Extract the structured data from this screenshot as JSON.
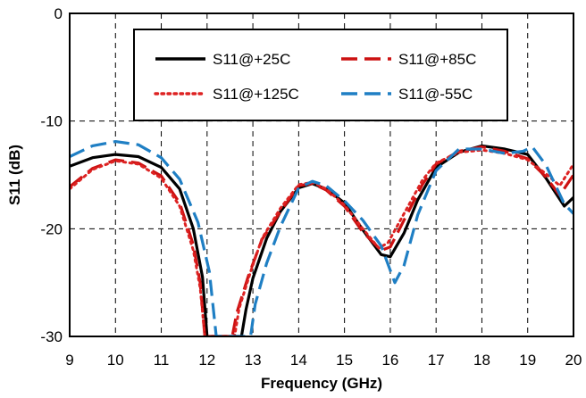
{
  "chart_data": {
    "type": "line",
    "xlabel": "Frequency (GHz)",
    "ylabel": "S11 (dB)",
    "xlim": [
      9,
      20
    ],
    "ylim": [
      -30,
      0
    ],
    "xticks": [
      9,
      10,
      11,
      12,
      13,
      14,
      15,
      16,
      17,
      18,
      19,
      20
    ],
    "yticks": [
      0,
      -10,
      -20,
      -30
    ],
    "grid": true,
    "legend": "top",
    "series": [
      {
        "name": "S11@+25C",
        "color": "#000000",
        "dash": "solid",
        "points": [
          [
            9,
            -14.2
          ],
          [
            9.5,
            -13.4
          ],
          [
            10,
            -13.1
          ],
          [
            10.5,
            -13.3
          ],
          [
            11,
            -14.3
          ],
          [
            11.4,
            -16.3
          ],
          [
            11.7,
            -20
          ],
          [
            11.9,
            -24.5
          ],
          [
            12.0,
            -30
          ],
          [
            12.75,
            -30
          ],
          [
            12.85,
            -27.5
          ],
          [
            13.0,
            -24.6
          ],
          [
            13.3,
            -20.9
          ],
          [
            13.6,
            -18.4
          ],
          [
            14.0,
            -16.2
          ],
          [
            14.3,
            -15.8
          ],
          [
            14.6,
            -16.3
          ],
          [
            15.0,
            -17.6
          ],
          [
            15.4,
            -20.1
          ],
          [
            15.8,
            -22.4
          ],
          [
            16.0,
            -22.6
          ],
          [
            16.3,
            -20.4
          ],
          [
            16.6,
            -17.3
          ],
          [
            17.0,
            -14.3
          ],
          [
            17.5,
            -12.9
          ],
          [
            18.0,
            -12.3
          ],
          [
            18.5,
            -12.6
          ],
          [
            19.0,
            -13.1
          ],
          [
            19.4,
            -15.3
          ],
          [
            19.8,
            -17.9
          ],
          [
            20,
            -17.1
          ]
        ]
      },
      {
        "name": "S11@+85C",
        "color": "#cc1111",
        "dash": "dashed",
        "points": [
          [
            9,
            -16.1
          ],
          [
            9.5,
            -14.4
          ],
          [
            10,
            -13.6
          ],
          [
            10.5,
            -13.9
          ],
          [
            11,
            -15.1
          ],
          [
            11.4,
            -17.6
          ],
          [
            11.7,
            -21.5
          ],
          [
            11.85,
            -25
          ],
          [
            11.95,
            -30
          ],
          [
            12.55,
            -30
          ],
          [
            12.65,
            -27.8
          ],
          [
            12.9,
            -24.4
          ],
          [
            13.2,
            -21.0
          ],
          [
            13.6,
            -18.4
          ],
          [
            14.0,
            -16.0
          ],
          [
            14.3,
            -15.8
          ],
          [
            14.6,
            -16.4
          ],
          [
            15.0,
            -17.9
          ],
          [
            15.4,
            -20.3
          ],
          [
            15.8,
            -22.0
          ],
          [
            16.0,
            -21.7
          ],
          [
            16.3,
            -19.2
          ],
          [
            16.7,
            -15.9
          ],
          [
            17.0,
            -14.0
          ],
          [
            17.5,
            -12.8
          ],
          [
            18.0,
            -12.4
          ],
          [
            18.5,
            -12.8
          ],
          [
            19.0,
            -13.5
          ],
          [
            19.4,
            -15.2
          ],
          [
            19.7,
            -16.9
          ],
          [
            20,
            -15.0
          ]
        ]
      },
      {
        "name": "S11@+125C",
        "color": "#dd2222",
        "dash": "dotted",
        "points": [
          [
            9,
            -16.3
          ],
          [
            9.5,
            -14.5
          ],
          [
            10,
            -13.7
          ],
          [
            10.5,
            -14.0
          ],
          [
            11,
            -15.3
          ],
          [
            11.4,
            -17.9
          ],
          [
            11.7,
            -22.0
          ],
          [
            11.85,
            -25.5
          ],
          [
            11.95,
            -30
          ],
          [
            12.6,
            -30
          ],
          [
            12.7,
            -27.4
          ],
          [
            12.95,
            -24.0
          ],
          [
            13.2,
            -20.9
          ],
          [
            13.6,
            -18.1
          ],
          [
            14.0,
            -15.9
          ],
          [
            14.3,
            -15.7
          ],
          [
            14.6,
            -16.3
          ],
          [
            15.0,
            -17.8
          ],
          [
            15.4,
            -20.0
          ],
          [
            15.75,
            -21.8
          ],
          [
            15.95,
            -21.3
          ],
          [
            16.3,
            -18.6
          ],
          [
            16.7,
            -15.5
          ],
          [
            17.0,
            -13.9
          ],
          [
            17.5,
            -12.9
          ],
          [
            18.0,
            -12.7
          ],
          [
            18.5,
            -13.0
          ],
          [
            19.0,
            -13.6
          ],
          [
            19.4,
            -14.9
          ],
          [
            19.7,
            -16.0
          ],
          [
            20,
            -14.0
          ]
        ]
      },
      {
        "name": "S11@-55C",
        "color": "#1f7fc4",
        "dash": "dashed",
        "points": [
          [
            9,
            -13.3
          ],
          [
            9.5,
            -12.3
          ],
          [
            10,
            -11.9
          ],
          [
            10.5,
            -12.2
          ],
          [
            11,
            -13.4
          ],
          [
            11.4,
            -15.4
          ],
          [
            11.8,
            -19.4
          ],
          [
            12.05,
            -24.0
          ],
          [
            12.2,
            -30
          ],
          [
            12.95,
            -30
          ],
          [
            13.05,
            -27.0
          ],
          [
            13.3,
            -23.2
          ],
          [
            13.6,
            -19.8
          ],
          [
            14.0,
            -16.2
          ],
          [
            14.3,
            -15.6
          ],
          [
            14.6,
            -16.0
          ],
          [
            15.0,
            -17.4
          ],
          [
            15.4,
            -19.2
          ],
          [
            15.8,
            -21.6
          ],
          [
            16.1,
            -25.0
          ],
          [
            16.3,
            -23.4
          ],
          [
            16.6,
            -18.7
          ],
          [
            17.0,
            -14.6
          ],
          [
            17.5,
            -12.6
          ],
          [
            18.0,
            -12.6
          ],
          [
            18.5,
            -13.0
          ],
          [
            18.9,
            -12.8
          ],
          [
            19.1,
            -12.4
          ],
          [
            19.4,
            -14.1
          ],
          [
            19.8,
            -17.7
          ],
          [
            20,
            -18.6
          ]
        ]
      }
    ]
  }
}
